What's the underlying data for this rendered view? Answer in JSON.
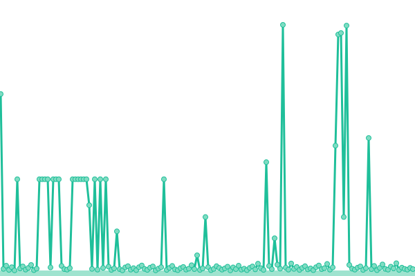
{
  "chart_data": {
    "type": "line",
    "title": "",
    "xlabel": "",
    "ylabel": "",
    "xlim": [
      0,
      596
    ],
    "ylim": [
      0,
      100
    ],
    "grid": false,
    "markers": true,
    "colors": {
      "line": "#1fbf9a",
      "marker_fill": "#7fdcc2",
      "marker_stroke": "#1fbf9a",
      "base": "#9fe3cf"
    },
    "x_step": 4,
    "values": [
      72,
      1.2,
      2.5,
      0.8,
      1.9,
      0.6,
      37.5,
      1.4,
      2.2,
      0.9,
      1.6,
      2.8,
      0.7,
      1.3,
      37.5,
      37.5,
      37.5,
      37.5,
      1.8,
      37.5,
      37.5,
      37.5,
      2.4,
      1.1,
      0.9,
      1.5,
      37.5,
      37.5,
      37.5,
      37.5,
      37.5,
      37.5,
      27,
      1.2,
      37.5,
      0.9,
      37.5,
      1.6,
      37.5,
      2.1,
      0.8,
      1.4,
      16.4,
      1.1,
      0.6,
      1.8,
      2.3,
      0.9,
      1.5,
      0.7,
      1.9,
      2.6,
      1.2,
      0.8,
      1.7,
      2.2,
      0.6,
      1.3,
      1.9,
      37.5,
      0.8,
      1.6,
      2.4,
      1.0,
      0.7,
      1.5,
      2.0,
      0.9,
      1.3,
      2.7,
      1.1,
      6.7,
      0.8,
      1.4,
      22.2,
      1.9,
      0.7,
      1.2,
      2.3,
      1.6,
      0.9,
      1.4,
      2.1,
      0.6,
      1.8,
      1.1,
      2.5,
      0.9,
      1.3,
      0.7,
      1.6,
      2.2,
      1.0,
      3.3,
      1.5,
      0.8,
      44.4,
      2.4,
      1.1,
      13.6,
      2.9,
      1.3,
      100,
      1.7,
      0.9,
      3.4,
      1.2,
      2.0,
      0.8,
      1.6,
      2.3,
      1.0,
      1.4,
      0.7,
      1.9,
      2.6,
      1.1,
      1.5,
      3.2,
      0.9,
      1.8,
      51.1,
      96.1,
      96.7,
      22.2,
      99.7,
      2.8,
      1.3,
      0.9,
      1.7,
      2.2,
      0.8,
      1.5,
      54.2,
      1.1,
      2.4,
      0.7,
      1.6,
      3.0,
      1.2,
      0.9,
      2.1,
      1.4,
      3.5,
      0.8,
      1.7,
      1.2,
      0.9,
      1.6,
      1.1
    ]
  }
}
